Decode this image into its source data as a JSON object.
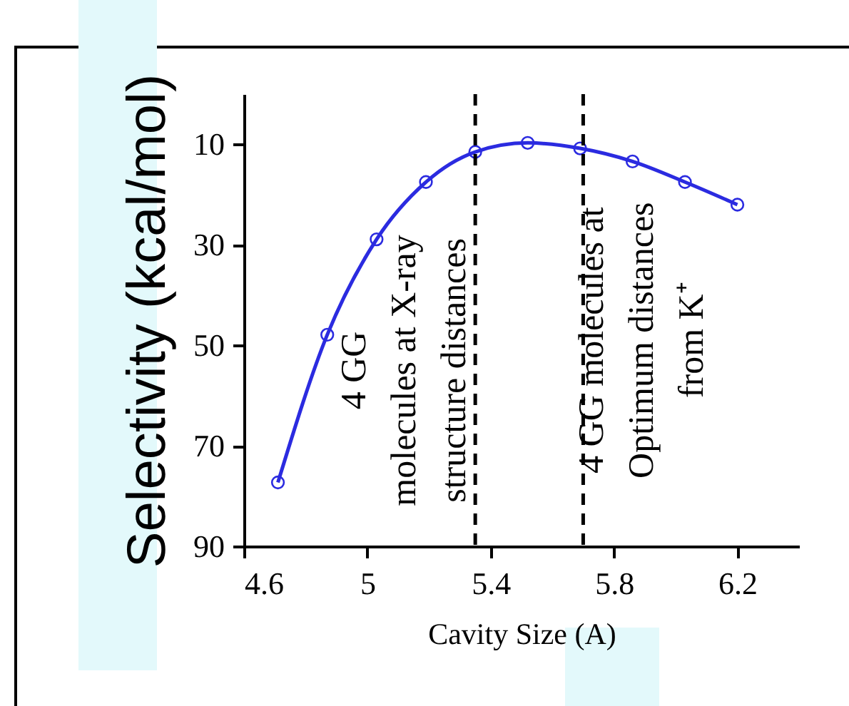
{
  "chart_data": {
    "type": "line",
    "xlabel": "Cavity Size (A)",
    "ylabel": "Selectivity (kcal/mol)",
    "x": [
      4.71,
      4.87,
      5.03,
      5.19,
      5.35,
      5.52,
      5.69,
      5.86,
      6.03,
      6.2
    ],
    "series": [
      {
        "color": "#2b2be0",
        "values": [
          77.3,
          47.9,
          28.9,
          17.5,
          11.5,
          9.7,
          10.8,
          13.4,
          17.5,
          22.0
        ]
      }
    ],
    "xlim": [
      4.6,
      6.4
    ],
    "xticks": [
      4.6,
      5,
      5.4,
      5.8,
      6.2
    ],
    "ylim": [
      90,
      0
    ],
    "yticks": [
      10,
      30,
      50,
      70,
      90
    ],
    "marker": "circle",
    "line_style": "solid",
    "grid": false,
    "ref_lines": [
      {
        "axis": "x",
        "value": 5.35,
        "label": "4 GG\nmolecules at X-ray\nstructure distances",
        "color": "#000000",
        "line_style": "dashed"
      },
      {
        "axis": "x",
        "value": 5.7,
        "label": "4 GG molecules at\nOptimum distances\nfrom K⁺",
        "color": "#000000",
        "line_style": "dashed"
      }
    ]
  }
}
